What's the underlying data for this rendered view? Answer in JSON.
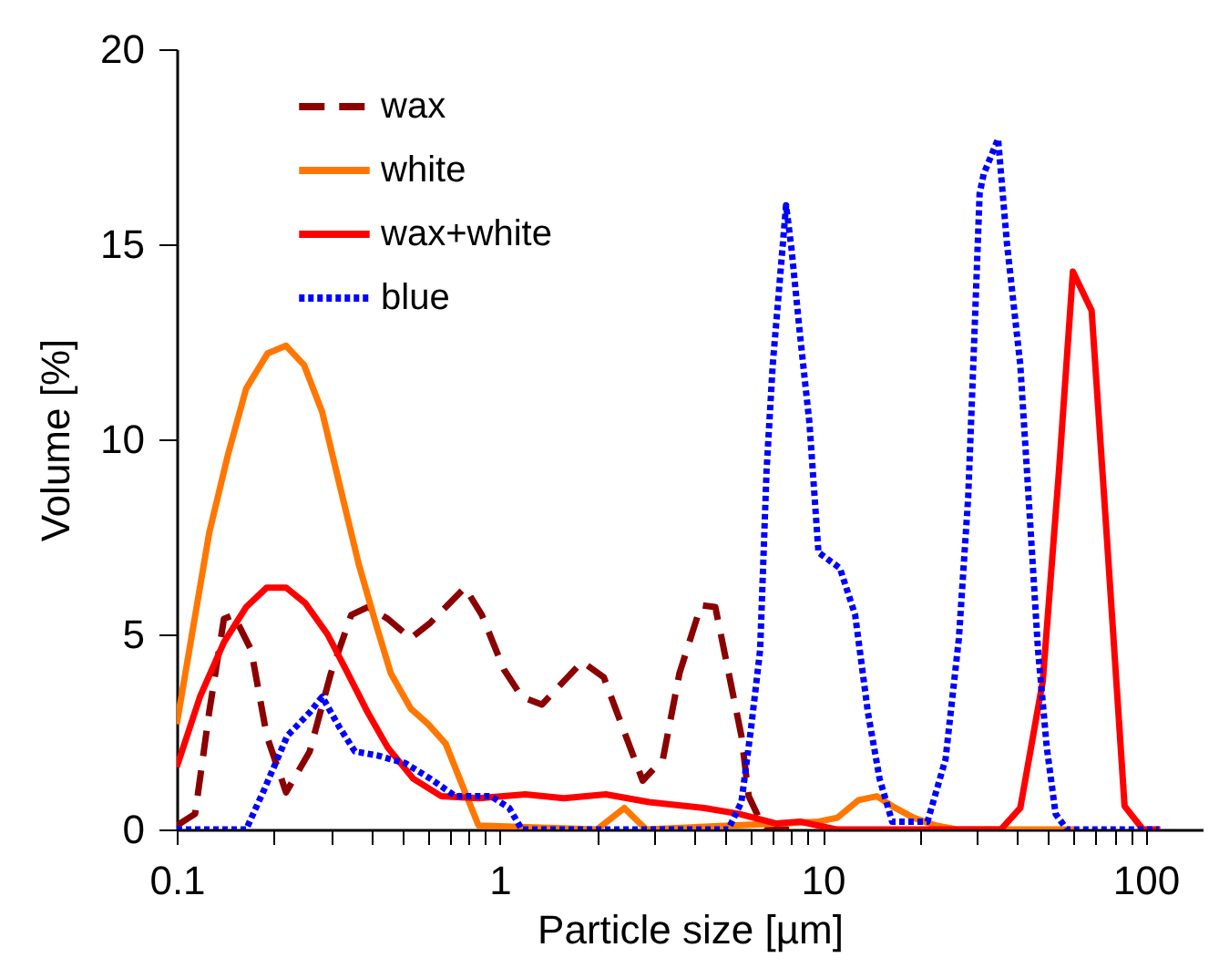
{
  "chart_data": {
    "type": "line",
    "xlabel": "Particle size [µm]",
    "ylabel": "Volume [%]",
    "log": "x",
    "xlim": [
      0.1,
      150
    ],
    "ylim": [
      0,
      20
    ],
    "yticks": [
      0,
      5,
      10,
      15,
      20
    ],
    "xticks": [
      0.1,
      {
        "value": 0.2,
        "label": null
      },
      {
        "value": 0.3,
        "label": null
      },
      {
        "value": 0.4,
        "label": null
      },
      {
        "value": 0.5,
        "label": null
      },
      {
        "value": 0.6,
        "label": null
      },
      {
        "value": 0.7,
        "label": null
      },
      {
        "value": 0.8,
        "label": null
      },
      {
        "value": 0.9,
        "label": null
      },
      1,
      {
        "value": 2,
        "label": null
      },
      {
        "value": 3,
        "label": null
      },
      {
        "value": 4,
        "label": null
      },
      {
        "value": 5,
        "label": null
      },
      {
        "value": 6,
        "label": null
      },
      {
        "value": 7,
        "label": null
      },
      {
        "value": 8,
        "label": null
      },
      {
        "value": 9,
        "label": null
      },
      10,
      {
        "value": 20,
        "label": null
      },
      {
        "value": 30,
        "label": null
      },
      {
        "value": 40,
        "label": null
      },
      {
        "value": 50,
        "label": null
      },
      {
        "value": 60,
        "label": null
      },
      {
        "value": 70,
        "label": null
      },
      {
        "value": 80,
        "label": null
      },
      {
        "value": 90,
        "label": null
      },
      100
    ],
    "grid": false,
    "legend": "top left",
    "marker": "none",
    "series": [
      {
        "name": "wax",
        "color": "#8b0000",
        "line_style": "dashed",
        "x": [
          0.1,
          0.114,
          0.126,
          0.14,
          0.15,
          0.17,
          0.19,
          0.218,
          0.258,
          0.3,
          0.347,
          0.39,
          0.45,
          0.53,
          0.61,
          0.78,
          0.88,
          1.03,
          1.17,
          1.35,
          1.8,
          2.1,
          2.77,
          3.2,
          3.6,
          4.2,
          4.65,
          5.6,
          5.9,
          6.6,
          8
        ],
        "values": [
          0.1,
          0.4,
          3.0,
          5.4,
          5.5,
          4.6,
          2.4,
          0.95,
          2.0,
          4.0,
          5.5,
          5.7,
          5.4,
          4.9,
          5.3,
          6.2,
          5.5,
          4.1,
          3.4,
          3.2,
          4.3,
          3.9,
          1.25,
          1.8,
          4.0,
          5.75,
          5.7,
          2.4,
          0.85,
          0,
          0
        ]
      },
      {
        "name": "white",
        "color": "#ff7700",
        "line_style": "solid",
        "x": [
          0.1,
          0.126,
          0.144,
          0.164,
          0.191,
          0.218,
          0.248,
          0.282,
          0.32,
          0.366,
          0.416,
          0.46,
          0.53,
          0.6,
          0.68,
          0.76,
          0.86,
          2.0,
          2.43,
          2.84,
          9.7,
          11.1,
          12.9,
          14.7,
          16.4,
          19.1,
          22.4,
          26,
          60
        ],
        "values": [
          2.7,
          7.6,
          9.6,
          11.3,
          12.2,
          12.4,
          11.9,
          10.7,
          8.8,
          6.8,
          5.2,
          4.0,
          3.1,
          2.7,
          2.2,
          1.2,
          0.1,
          0,
          0.55,
          0,
          0.2,
          0.3,
          0.75,
          0.85,
          0.6,
          0.3,
          0.1,
          0,
          0
        ]
      },
      {
        "name": "wax+white",
        "color": "#ff0000",
        "line_style": "solid",
        "x": [
          0.1,
          0.118,
          0.14,
          0.164,
          0.19,
          0.218,
          0.25,
          0.293,
          0.334,
          0.39,
          0.45,
          0.54,
          0.66,
          0.86,
          1.2,
          1.58,
          2.13,
          2.9,
          4.3,
          5.5,
          7.2,
          8.5,
          11,
          35.6,
          40.9,
          48,
          54,
          59.5,
          68,
          75.5,
          86,
          98,
          111
        ],
        "values": [
          1.6,
          3.4,
          4.8,
          5.7,
          6.2,
          6.2,
          5.8,
          5.0,
          4.1,
          3.0,
          2.1,
          1.3,
          0.85,
          0.8,
          0.9,
          0.8,
          0.9,
          0.7,
          0.55,
          0.4,
          0.15,
          0.2,
          0,
          0,
          0.55,
          3.8,
          9.3,
          14.3,
          13.3,
          7.7,
          0.6,
          0,
          0
        ]
      },
      {
        "name": "blue",
        "color": "#0000ff",
        "line_style": "dotted",
        "x": [
          0.1,
          0.164,
          0.186,
          0.22,
          0.258,
          0.282,
          0.32,
          0.356,
          0.416,
          0.51,
          0.61,
          0.73,
          0.94,
          1.07,
          1.17,
          5.1,
          5.6,
          6.0,
          6.4,
          6.7,
          7.0,
          7.7,
          8.0,
          8.5,
          9.1,
          9.7,
          11.3,
          12.6,
          13.8,
          15.0,
          16.4,
          21.1,
          24,
          26.4,
          28.2,
          29.4,
          30.6,
          31.5,
          34.9,
          37.2,
          40.9,
          43.4,
          46.4,
          49.4,
          52.6,
          57,
          110
        ],
        "values": [
          0,
          0,
          1.0,
          2.4,
          3.0,
          3.4,
          2.6,
          2.0,
          1.9,
          1.7,
          1.3,
          0.85,
          0.85,
          0.55,
          0,
          0,
          0.7,
          2.6,
          4.6,
          9.2,
          11.9,
          16.0,
          14.9,
          12.7,
          10.4,
          7.1,
          6.7,
          5.5,
          3.0,
          1.3,
          0.2,
          0.2,
          1.8,
          4.9,
          8.5,
          12.4,
          16.3,
          16.8,
          17.7,
          15.0,
          11.9,
          8.5,
          4.6,
          2.1,
          0.4,
          0,
          0
        ]
      }
    ]
  }
}
